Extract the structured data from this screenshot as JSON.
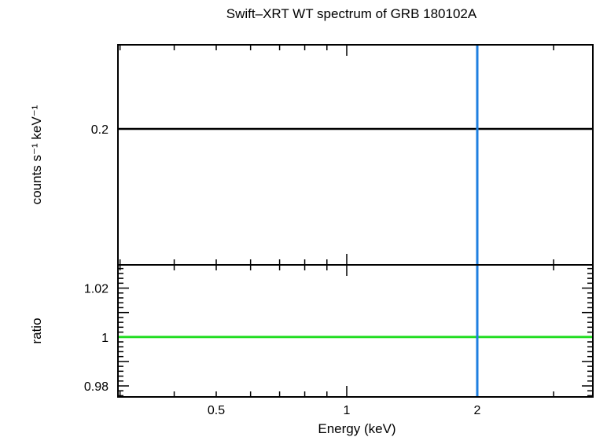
{
  "chart_data": [
    {
      "type": "line",
      "panel": "spectrum",
      "title": "Swift–XRT WT spectrum of GRB 180102A",
      "ylabel": "counts s⁻¹ keV⁻¹",
      "xscale": "log",
      "yscale": "log",
      "ytick_labels": [
        {
          "label": "0.2",
          "value": 0.2
        }
      ],
      "series": [
        {
          "x": [
            0.3,
            3.5
          ],
          "y": [
            0.2,
            0.2
          ],
          "color": "#000000"
        }
      ],
      "marker_line": {
        "x": 2,
        "color": "#1e7fe0"
      }
    },
    {
      "type": "line",
      "panel": "ratio",
      "xlabel": "Energy (keV)",
      "ylabel": "ratio",
      "xscale": "log",
      "ylim": [
        0.9755,
        1.0295
      ],
      "ytick_labels": [
        {
          "label": "1.02",
          "value": 1.02
        },
        {
          "label": "1",
          "value": 1.0
        },
        {
          "label": "0.98",
          "value": 0.98
        }
      ],
      "xtick_labels": [
        {
          "label": "0.5",
          "value": 0.5
        },
        {
          "label": "1",
          "value": 1
        },
        {
          "label": "2",
          "value": 2
        }
      ],
      "series": [
        {
          "x": [
            0.3,
            3.5
          ],
          "y": [
            1.0,
            1.0
          ],
          "color": "#22dd22"
        }
      ],
      "marker_line": {
        "x": 2,
        "color": "#1e7fe0"
      }
    }
  ]
}
